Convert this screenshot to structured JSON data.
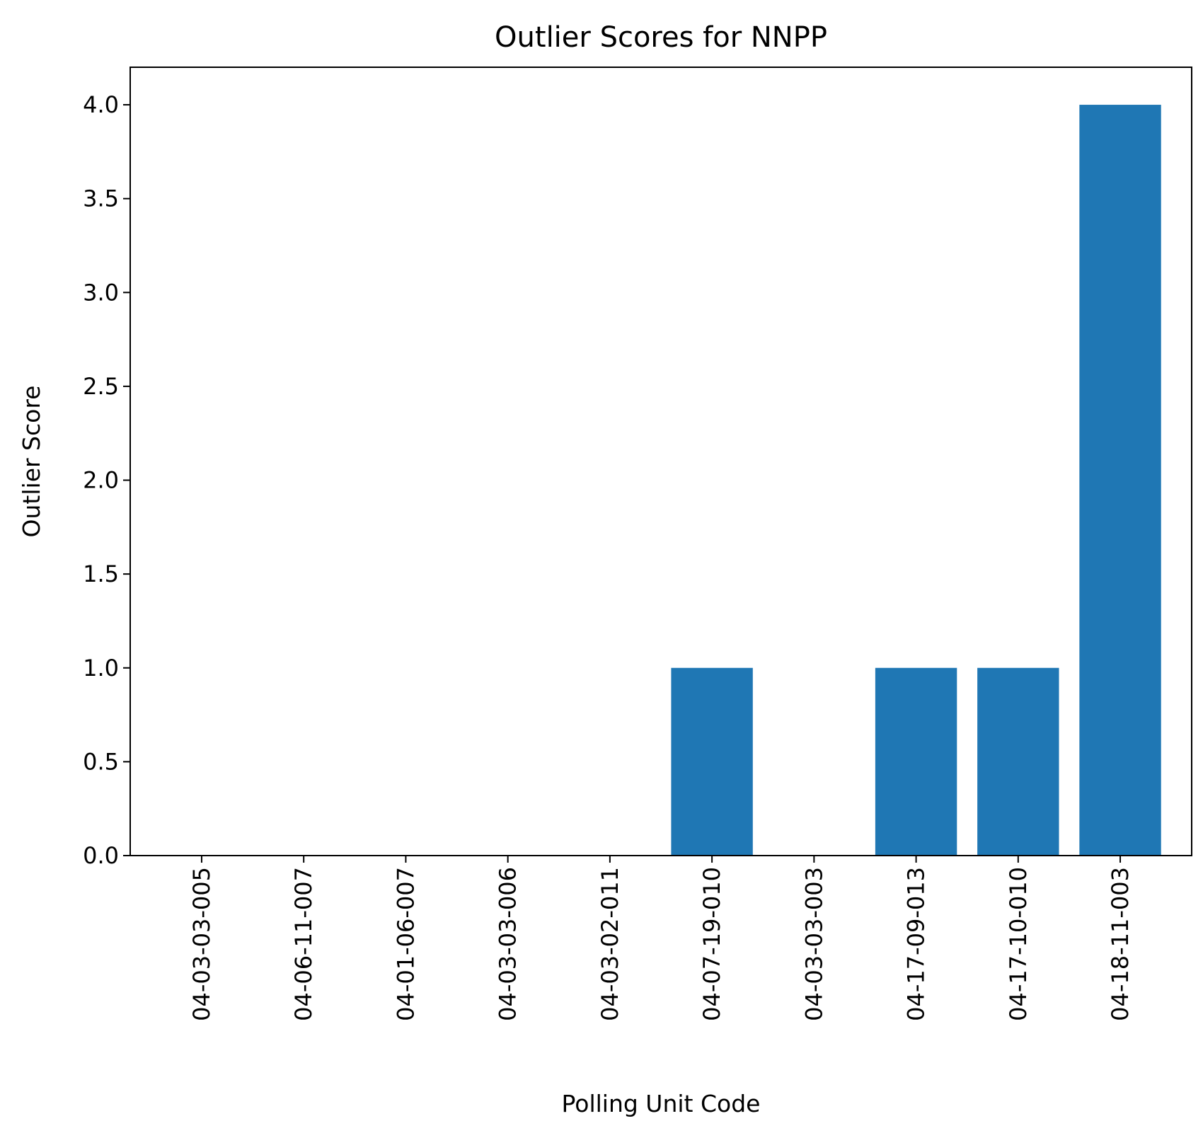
{
  "chart_data": {
    "type": "bar",
    "title": "Outlier Scores for NNPP",
    "xlabel": "Polling Unit Code",
    "ylabel": "Outlier Score",
    "categories": [
      "04-03-03-005",
      "04-06-11-007",
      "04-01-06-007",
      "04-03-03-006",
      "04-03-02-011",
      "04-07-19-010",
      "04-03-03-003",
      "04-17-09-013",
      "04-17-10-010",
      "04-18-11-003"
    ],
    "values": [
      0,
      0,
      0,
      0,
      0,
      1,
      0,
      1,
      1,
      4
    ],
    "yticks": [
      0.0,
      0.5,
      1.0,
      1.5,
      2.0,
      2.5,
      3.0,
      3.5,
      4.0
    ],
    "ytick_labels": [
      "0.0",
      "0.5",
      "1.0",
      "1.5",
      "2.0",
      "2.5",
      "3.0",
      "3.5",
      "4.0"
    ],
    "ylim": [
      0,
      4.2
    ],
    "grid": false,
    "bar_color": "#1f77b4"
  }
}
